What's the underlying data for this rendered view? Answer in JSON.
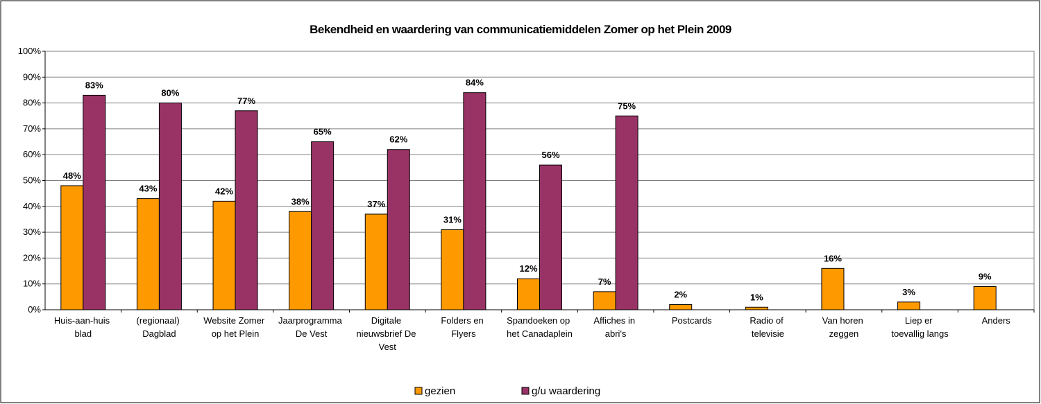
{
  "chart_data": {
    "type": "bar",
    "title": "Bekendheid en waardering van communicatiemiddelen Zomer op het Plein 2009",
    "categories": [
      "Huis-aan-huis blad",
      "(regionaal) Dagblad",
      "Website Zomer op het Plein",
      "Jaarprogramma De Vest",
      "Digitale nieuwsbrief De Vest",
      "Folders en Flyers",
      "Spandoeken op het Canadaplein",
      "Affiches in abri's",
      "Postcards",
      "Radio of televisie",
      "Van horen zeggen",
      "Liep er toevallig langs",
      "Anders"
    ],
    "series": [
      {
        "name": "gezien",
        "color": "#FF9900",
        "values": [
          48,
          43,
          42,
          38,
          37,
          31,
          12,
          7,
          2,
          1,
          16,
          3,
          9
        ],
        "value_labels": [
          "48%",
          "43%",
          "42%",
          "38%",
          "37%",
          "31%",
          "12%",
          "7%",
          "2%",
          "1%",
          "16%",
          "3%",
          "9%"
        ]
      },
      {
        "name": "g/u waardering",
        "color": "#993366",
        "values": [
          83,
          80,
          77,
          65,
          62,
          84,
          56,
          75,
          null,
          null,
          null,
          null,
          null
        ],
        "value_labels": [
          "83%",
          "80%",
          "77%",
          "65%",
          "62%",
          "84%",
          "56%",
          "75%",
          null,
          null,
          null,
          null,
          null
        ]
      }
    ],
    "ylim": [
      0,
      100
    ],
    "yticks": [
      {
        "value": 0,
        "label": "0%"
      },
      {
        "value": 10,
        "label": "10%"
      },
      {
        "value": 20,
        "label": "20%"
      },
      {
        "value": 30,
        "label": "30%"
      },
      {
        "value": 40,
        "label": "40%"
      },
      {
        "value": 50,
        "label": "50%"
      },
      {
        "value": 60,
        "label": "60%"
      },
      {
        "value": 70,
        "label": "70%"
      },
      {
        "value": 80,
        "label": "80%"
      },
      {
        "value": 90,
        "label": "90%"
      },
      {
        "value": 100,
        "label": "100%"
      }
    ],
    "grid": true,
    "legend": "bottom"
  }
}
